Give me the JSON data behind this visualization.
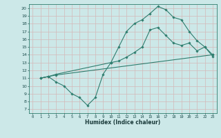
{
  "xlabel": "Humidex (Indice chaleur)",
  "bg_color": "#cce8e8",
  "grid_color": "#b8d4d4",
  "line_color": "#2e7d6e",
  "xlim": [
    -0.5,
    23.5
  ],
  "ylim": [
    6.5,
    20.5
  ],
  "xticks": [
    0,
    1,
    2,
    3,
    4,
    5,
    6,
    7,
    8,
    9,
    10,
    11,
    12,
    13,
    14,
    15,
    16,
    17,
    18,
    19,
    20,
    21,
    22,
    23
  ],
  "yticks": [
    7,
    8,
    9,
    10,
    11,
    12,
    13,
    14,
    15,
    16,
    17,
    18,
    19,
    20
  ],
  "line1_x": [
    1,
    2,
    3,
    4,
    5,
    6,
    7,
    8,
    9,
    10,
    11,
    12,
    13,
    14,
    15,
    16,
    17,
    18,
    19,
    20,
    21,
    22,
    23
  ],
  "line1_y": [
    11.0,
    11.2,
    10.5,
    10.0,
    9.0,
    8.5,
    7.5,
    8.5,
    11.5,
    13.0,
    13.2,
    13.7,
    14.3,
    15.0,
    17.2,
    17.5,
    16.5,
    15.5,
    15.2,
    15.5,
    14.5,
    15.0,
    14.0
  ],
  "line2_x": [
    1,
    2,
    3,
    23
  ],
  "line2_y": [
    11.0,
    11.2,
    11.4,
    14.0
  ],
  "line3_x": [
    1,
    2,
    3,
    10,
    11,
    12,
    13,
    14,
    15,
    16,
    17,
    18,
    19,
    20,
    21,
    22,
    23
  ],
  "line3_y": [
    11.0,
    11.2,
    11.5,
    13.0,
    15.0,
    17.0,
    18.0,
    18.5,
    19.3,
    20.2,
    19.8,
    18.8,
    18.5,
    17.0,
    15.8,
    15.0,
    13.8
  ]
}
